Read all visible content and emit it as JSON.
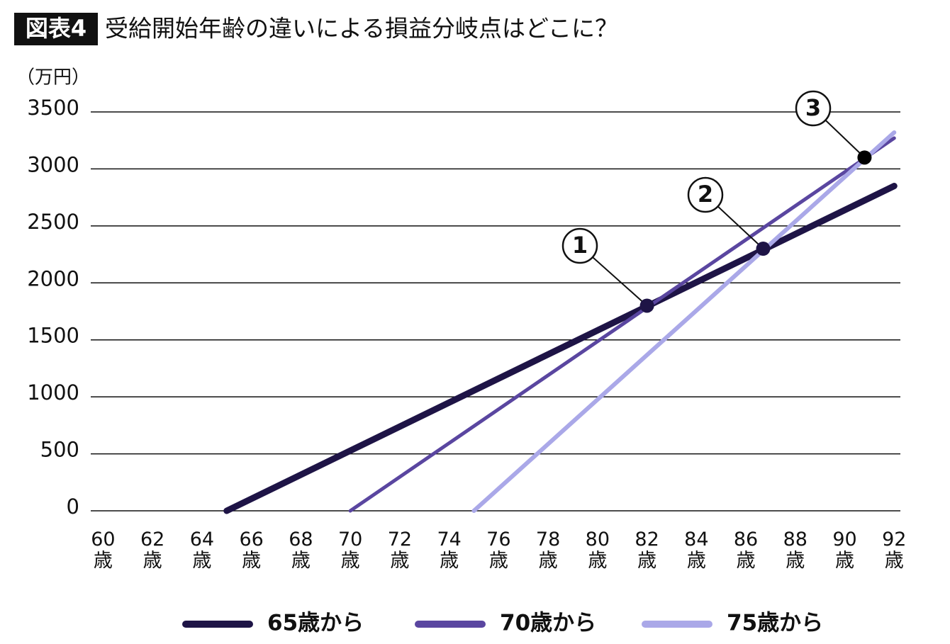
{
  "chart_data": {
    "type": "line",
    "badge": "図表4",
    "title": "受給開始年齢の違いによる損益分岐点はどこに？",
    "y_label": "（万円）",
    "xlim": [
      59.5,
      92.25
    ],
    "ylim": [
      0,
      3500
    ],
    "yticks": [
      0,
      500,
      1000,
      1500,
      2000,
      2500,
      3000,
      3500
    ],
    "xticks": [
      {
        "value": 60,
        "label": "60歳"
      },
      {
        "value": 62,
        "label": "62歳"
      },
      {
        "value": 64,
        "label": "64歳"
      },
      {
        "value": 66,
        "label": "66歳"
      },
      {
        "value": 68,
        "label": "68歳"
      },
      {
        "value": 70,
        "label": "70歳"
      },
      {
        "value": 72,
        "label": "72歳"
      },
      {
        "value": 74,
        "label": "74歳"
      },
      {
        "value": 76,
        "label": "76歳"
      },
      {
        "value": 78,
        "label": "78歳"
      },
      {
        "value": 80,
        "label": "80歳"
      },
      {
        "value": 82,
        "label": "82歳"
      },
      {
        "value": 84,
        "label": "84歳"
      },
      {
        "value": 86,
        "label": "86歳"
      },
      {
        "value": 88,
        "label": "88歳"
      },
      {
        "value": 90,
        "label": "90歳"
      },
      {
        "value": 92,
        "label": "92歳"
      }
    ],
    "grid": true,
    "series": [
      {
        "name": "65歳から",
        "color": "#1e1446",
        "width": 9,
        "x": [
          65,
          92
        ],
        "values": [
          0,
          2850
        ]
      },
      {
        "name": "70歳から",
        "color": "#5a46a0",
        "width": 5,
        "x": [
          70,
          92
        ],
        "values": [
          0,
          3270
        ]
      },
      {
        "name": "75歳から",
        "color": "#aaa8e8",
        "width": 6,
        "x": [
          75,
          92
        ],
        "values": [
          0,
          3320
        ]
      }
    ],
    "annotations": [
      {
        "label": "1",
        "x": 82,
        "y": 1800,
        "color": "#1e1446"
      },
      {
        "label": "2",
        "x": 86.7,
        "y": 2300,
        "color": "#1e1446"
      },
      {
        "label": "3",
        "x": 90.8,
        "y": 3100,
        "color": "#000000"
      }
    ]
  }
}
